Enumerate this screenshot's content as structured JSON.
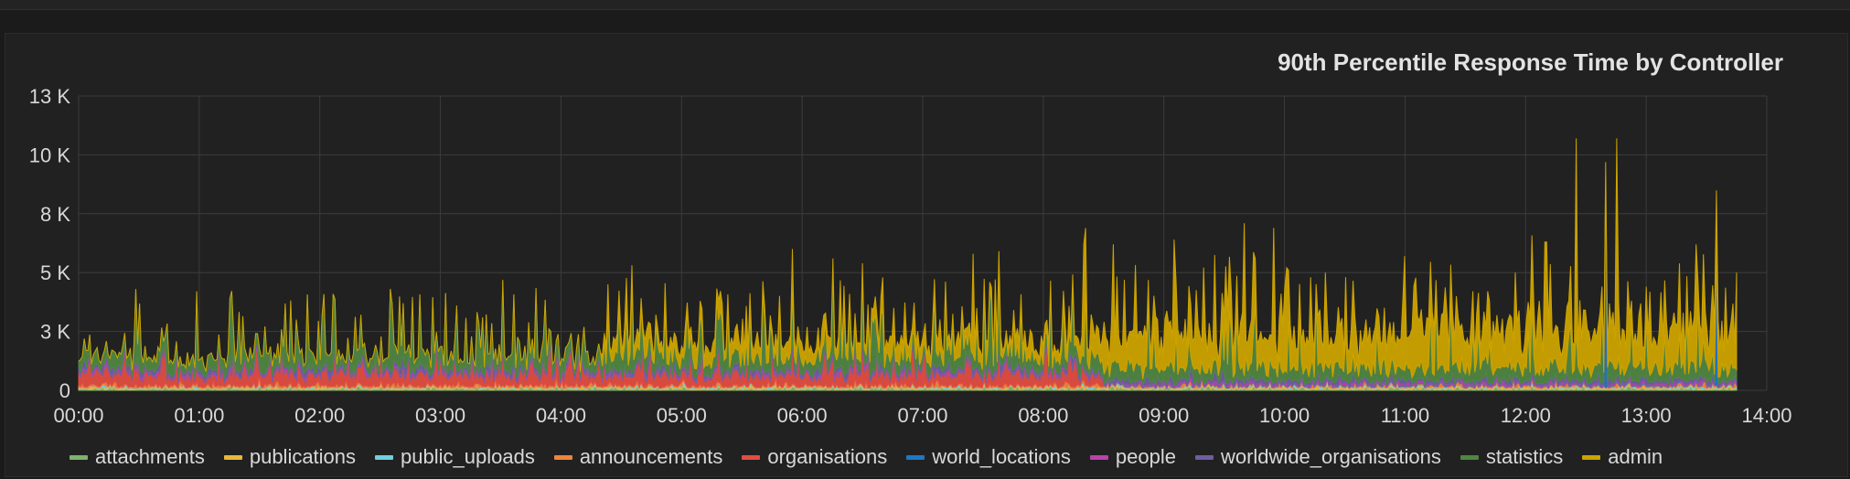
{
  "panel": {
    "title": "90th Percentile Response Time by Controller"
  },
  "chart_data": {
    "type": "area",
    "title": "90th Percentile Response Time by Controller",
    "xlabel": "",
    "ylabel": "",
    "x_ticks": [
      "00:00",
      "01:00",
      "02:00",
      "03:00",
      "04:00",
      "05:00",
      "06:00",
      "07:00",
      "08:00",
      "09:00",
      "10:00",
      "11:00",
      "12:00",
      "13:00",
      "14:00"
    ],
    "y_ticks": [
      "0",
      "3 K",
      "5 K",
      "8 K",
      "10 K",
      "13 K"
    ],
    "y_tick_values": [
      0,
      2500,
      5000,
      7500,
      10000,
      12500
    ],
    "xlim_hours": [
      0,
      14
    ],
    "ylim": [
      0,
      12500
    ],
    "grid": true,
    "stacked": true,
    "legend_position": "bottom",
    "series": [
      {
        "name": "attachments",
        "color": "#7eb26d",
        "typical_level": 60,
        "spike_level": 200
      },
      {
        "name": "publications",
        "color": "#eab839",
        "typical_level": 40,
        "spike_level": 150
      },
      {
        "name": "public_uploads",
        "color": "#6ed0e0",
        "typical_level": 30,
        "spike_level": 120
      },
      {
        "name": "announcements",
        "color": "#ef843c",
        "typical_level": 80,
        "spike_level": 300
      },
      {
        "name": "organisations",
        "color": "#e24d42",
        "typical_level": 600,
        "spike_level": 1700,
        "active_until": "08:30"
      },
      {
        "name": "world_locations",
        "color": "#1f78c1",
        "typical_level": 40,
        "peaks": [
          {
            "x": "12:40",
            "y": 8200
          },
          {
            "x": "13:35",
            "y": 5800
          }
        ]
      },
      {
        "name": "people",
        "color": "#ba43a9",
        "typical_level": 60,
        "spike_level": 200
      },
      {
        "name": "worldwide_organisations",
        "color": "#705da0",
        "typical_level": 150,
        "spike_level": 500
      },
      {
        "name": "statistics",
        "color": "#508642",
        "typical_level": 700,
        "spike_level": 3400,
        "peaks": [
          {
            "x": "02:35",
            "y": 4300
          },
          {
            "x": "04:35",
            "y": 4500
          },
          {
            "x": "05:55",
            "y": 4200
          }
        ]
      },
      {
        "name": "admin",
        "color": "#cca300",
        "typical_level": 2000,
        "spike_level": 4500,
        "active_from": "04:20",
        "peaks": [
          {
            "x": "05:55",
            "y": 6000
          },
          {
            "x": "06:15",
            "y": 5600
          },
          {
            "x": "06:40",
            "y": 4800
          },
          {
            "x": "07:25",
            "y": 5800
          },
          {
            "x": "08:20",
            "y": 6200
          },
          {
            "x": "08:35",
            "y": 6200
          },
          {
            "x": "09:05",
            "y": 6400
          },
          {
            "x": "09:40",
            "y": 7100
          },
          {
            "x": "09:55",
            "y": 6900
          },
          {
            "x": "10:20",
            "y": 5000
          },
          {
            "x": "11:00",
            "y": 5700
          },
          {
            "x": "11:55",
            "y": 5000
          },
          {
            "x": "12:10",
            "y": 6300
          },
          {
            "x": "12:25",
            "y": 10700
          },
          {
            "x": "12:45",
            "y": 10700
          },
          {
            "x": "13:25",
            "y": 6200
          },
          {
            "x": "13:45",
            "y": 5000
          }
        ]
      }
    ]
  }
}
